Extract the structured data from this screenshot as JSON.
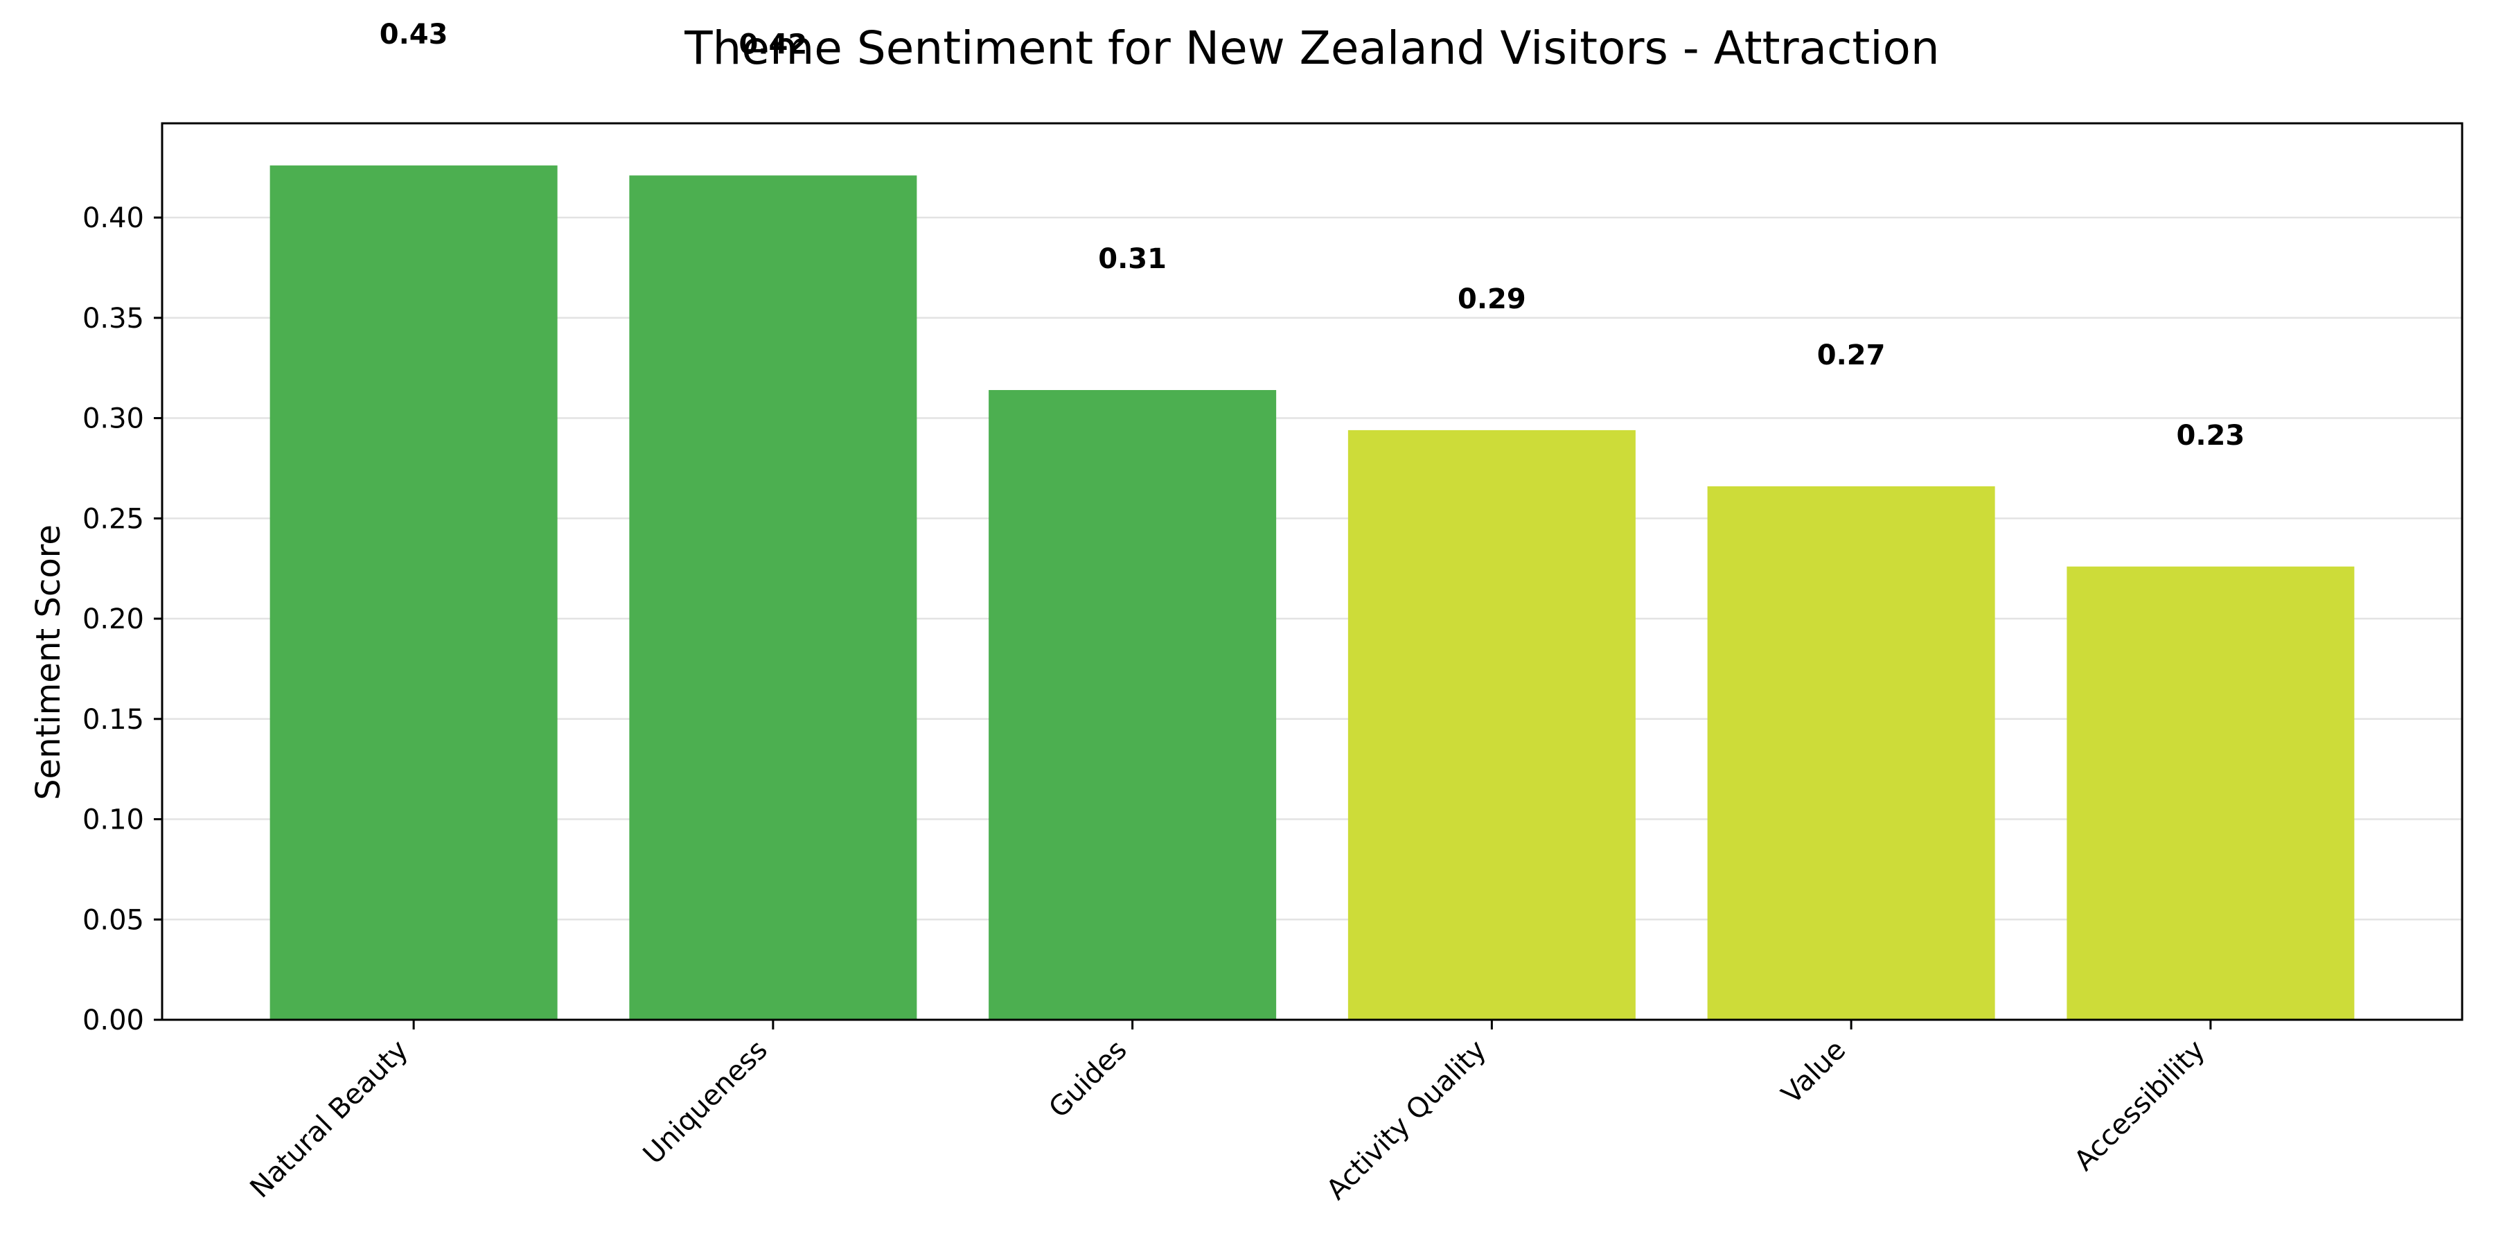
{
  "chart_data": {
    "type": "bar",
    "title": "Theme Sentiment for New Zealand Visitors - Attraction",
    "xlabel": "",
    "ylabel": "Sentiment Score",
    "categories": [
      "Natural Beauty",
      "Uniqueness",
      "Guides",
      "Activity Quality",
      "Value",
      "Accessibility"
    ],
    "values": [
      0.426,
      0.421,
      0.314,
      0.294,
      0.266,
      0.226
    ],
    "data_labels": [
      "0.43",
      "0.42",
      "0.31",
      "0.29",
      "0.27",
      "0.23"
    ],
    "bar_colors": [
      "#4caf50",
      "#4caf50",
      "#4caf50",
      "#cddc39",
      "#cddc39",
      "#cddc39"
    ],
    "ylim": [
      0,
      0.447
    ],
    "yticks": [
      0.0,
      0.05,
      0.1,
      0.15,
      0.2,
      0.25,
      0.3,
      0.35,
      0.4
    ],
    "ytick_labels": [
      "0.00",
      "0.05",
      "0.10",
      "0.15",
      "0.20",
      "0.25",
      "0.30",
      "0.35",
      "0.40"
    ],
    "grid": "y",
    "legend": "none"
  }
}
